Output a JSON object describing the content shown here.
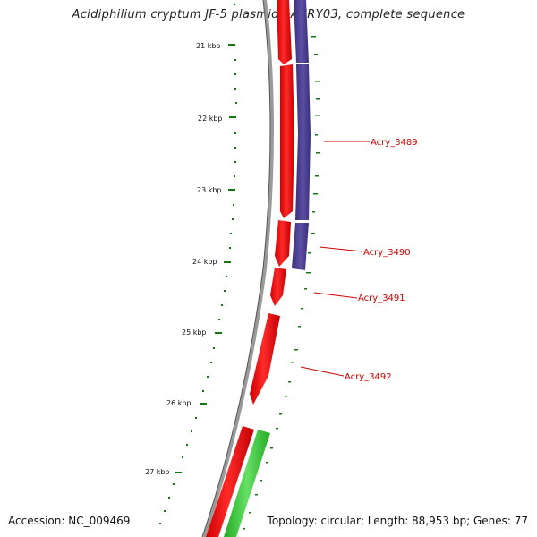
{
  "title": "Acidiphilium cryptum JF-5 plasmid pACRY03, complete sequence",
  "accession": "Accession: NC_009469",
  "summary": "Topology: circular; Length: 88,953 bp; Genes: 77",
  "ticks": [
    "21 kbp",
    "22 kbp",
    "23 kbp",
    "24 kbp",
    "25 kbp",
    "26 kbp",
    "27 kbp"
  ],
  "genes": [
    "Acry_3489",
    "Acry_3490",
    "Acry_3491",
    "Acry_3492"
  ],
  "colors": {
    "forward_cds": "#ee0000",
    "reverse_cds": "#4a3e8c",
    "rna": "#33cc33",
    "backbone": "#888888",
    "ruler": "#117711",
    "label": "#cc0000"
  }
}
